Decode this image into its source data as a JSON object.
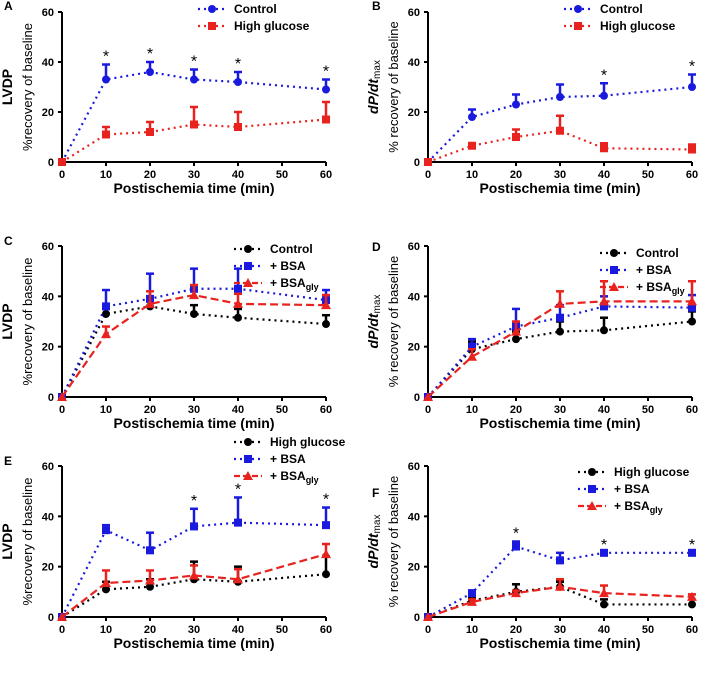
{
  "chart_data": [
    {
      "panel": "A",
      "type": "line",
      "ylabel_top": "LVDP",
      "ylabel": "%recovery of baseline",
      "xlabel": "Postischemia time (min)",
      "x": [
        0,
        10,
        20,
        30,
        40,
        60
      ],
      "xticks": [
        0,
        10,
        20,
        30,
        40,
        50,
        60
      ],
      "yticks": [
        0,
        20,
        40,
        60
      ],
      "ylim": [
        0,
        60
      ],
      "legend_position": "top-right",
      "series": [
        {
          "name": "Control",
          "color": "#1a1adf",
          "marker": "circle",
          "dash": "dot",
          "values": [
            0,
            33,
            36,
            33,
            32,
            29
          ],
          "errors": [
            0,
            6,
            4,
            4,
            4,
            4
          ]
        },
        {
          "name": "High glucose",
          "color": "#e8231f",
          "marker": "square",
          "dash": "dot",
          "values": [
            0,
            11,
            12,
            15,
            14,
            17
          ],
          "errors": [
            0,
            3,
            4,
            7,
            6,
            7
          ]
        }
      ],
      "stars_at": [
        10,
        20,
        30,
        40,
        60
      ],
      "star_symbol": "*"
    },
    {
      "panel": "B",
      "type": "line",
      "ylabel_top": "dP/dt",
      "ylabel_sub": "max",
      "ylabel": "% recovery of baseline",
      "xlabel": "Postischemia time (min)",
      "x": [
        0,
        10,
        20,
        30,
        40,
        60
      ],
      "xticks": [
        0,
        10,
        20,
        30,
        40,
        50,
        60
      ],
      "yticks": [
        0,
        20,
        40,
        60
      ],
      "ylim": [
        0,
        60
      ],
      "legend_position": "top-right",
      "series": [
        {
          "name": "Control",
          "color": "#1a1adf",
          "marker": "circle",
          "dash": "dot",
          "values": [
            0,
            18,
            23,
            26,
            26.5,
            30
          ],
          "errors": [
            0,
            3,
            4,
            5,
            5,
            5
          ]
        },
        {
          "name": "High glucose",
          "color": "#e8231f",
          "marker": "square",
          "dash": "dot",
          "values": [
            0,
            6.5,
            10,
            12.5,
            5.5,
            5
          ],
          "errors": [
            0,
            1,
            3,
            6,
            2,
            2
          ]
        }
      ],
      "stars_at": [
        40,
        60
      ],
      "star_symbol": "*"
    },
    {
      "panel": "C",
      "type": "line",
      "ylabel_top": "LVDP",
      "ylabel": "%recovery of baseline",
      "xlabel": "Postischemia time (min)",
      "x": [
        0,
        10,
        20,
        30,
        40,
        60
      ],
      "xticks": [
        0,
        10,
        20,
        30,
        40,
        50,
        60
      ],
      "yticks": [
        0,
        20,
        40,
        60
      ],
      "ylim": [
        0,
        60
      ],
      "legend_position": "top-right",
      "series": [
        {
          "name": "Control",
          "color": "#000000",
          "marker": "circle",
          "dash": "dot",
          "values": [
            0,
            33,
            36,
            33,
            31.5,
            29
          ],
          "errors": [
            0,
            3,
            3,
            3.5,
            3.5,
            3.5
          ]
        },
        {
          "name": "+ BSA",
          "color": "#1a1adf",
          "marker": "square",
          "dash": "dot",
          "values": [
            0,
            36,
            39,
            43,
            43,
            38.5
          ],
          "errors": [
            0,
            6.5,
            10,
            8,
            8,
            4
          ]
        },
        {
          "name": "+ BSA",
          "sub": "gly",
          "color": "#e8231f",
          "marker": "triangle",
          "dash": "dash",
          "values": [
            0,
            25,
            37,
            40.5,
            37,
            36.5
          ],
          "errors": [
            0,
            3,
            5,
            4,
            4,
            4
          ]
        }
      ],
      "stars_at": [],
      "star_symbol": "*"
    },
    {
      "panel": "D",
      "type": "line",
      "ylabel_top": "dP/dt",
      "ylabel_sub": "max",
      "ylabel": "% recovery of baseline",
      "xlabel": "Postischemia time (min)",
      "x": [
        0,
        10,
        20,
        30,
        40,
        60
      ],
      "xticks": [
        0,
        10,
        20,
        30,
        40,
        50,
        60
      ],
      "yticks": [
        0,
        20,
        40,
        60
      ],
      "ylim": [
        0,
        60
      ],
      "legend_position": "top-right",
      "series": [
        {
          "name": "Control",
          "color": "#000000",
          "marker": "circle",
          "dash": "dot",
          "values": [
            0,
            19,
            23,
            26,
            26.5,
            30
          ],
          "errors": [
            0,
            3,
            3,
            4,
            5,
            4
          ]
        },
        {
          "name": "+ BSA",
          "color": "#1a1adf",
          "marker": "square",
          "dash": "dot",
          "values": [
            0,
            20,
            28,
            31.5,
            36,
            35.5
          ],
          "errors": [
            0,
            3,
            7,
            5,
            4,
            5
          ]
        },
        {
          "name": "+ BSA",
          "sub": "gly",
          "color": "#e8231f",
          "marker": "triangle",
          "dash": "dash",
          "values": [
            0,
            16,
            26,
            37,
            38,
            38
          ],
          "errors": [
            0,
            3,
            4,
            5,
            8,
            8
          ]
        }
      ],
      "stars_at": [],
      "star_symbol": "*"
    },
    {
      "panel": "E",
      "type": "line",
      "ylabel_top": "LVDP",
      "ylabel": "%recovery of baseline",
      "xlabel": "Postischemia time (min)",
      "x": [
        0,
        10,
        20,
        30,
        40,
        60
      ],
      "xticks": [
        0,
        10,
        20,
        30,
        40,
        50,
        60
      ],
      "yticks": [
        0,
        20,
        40,
        60
      ],
      "ylim": [
        0,
        60
      ],
      "legend_position": "top-right",
      "series": [
        {
          "name": "High glucose",
          "color": "#000000",
          "marker": "circle",
          "dash": "dot",
          "values": [
            0,
            11,
            12,
            15,
            14,
            17
          ],
          "errors": [
            0,
            3,
            3,
            7,
            6,
            7
          ]
        },
        {
          "name": "+ BSA",
          "color": "#1a1adf",
          "marker": "square",
          "dash": "dot",
          "values": [
            0,
            34.5,
            26.5,
            36,
            37.5,
            36.5
          ],
          "errors": [
            0,
            2,
            7,
            7,
            10,
            7
          ]
        },
        {
          "name": "+ BSA",
          "sub": "gly",
          "color": "#e8231f",
          "marker": "triangle",
          "dash": "dash",
          "values": [
            0,
            13.5,
            14.5,
            16.5,
            15,
            25
          ],
          "errors": [
            0,
            5,
            4,
            4,
            4,
            4
          ]
        }
      ],
      "stars_at": [
        30,
        40,
        60
      ],
      "star_symbol": "*"
    },
    {
      "panel": "F",
      "type": "line",
      "ylabel_top": "dP/dt",
      "ylabel_sub": "max",
      "ylabel": "% recovery of baseline",
      "xlabel": "Postischemia time (min)",
      "x": [
        0,
        10,
        20,
        30,
        40,
        60
      ],
      "xticks": [
        0,
        10,
        20,
        30,
        40,
        50,
        60
      ],
      "yticks": [
        0,
        20,
        40,
        60
      ],
      "ylim": [
        0,
        60
      ],
      "legend_position": "top-right",
      "series": [
        {
          "name": "High glucose",
          "color": "#000000",
          "marker": "circle",
          "dash": "dot",
          "values": [
            0,
            6.5,
            10,
            12,
            5,
            5
          ],
          "errors": [
            0,
            1,
            3,
            2,
            2,
            0
          ]
        },
        {
          "name": "+ BSA",
          "color": "#1a1adf",
          "marker": "square",
          "dash": "dot",
          "values": [
            0,
            9.5,
            28,
            22.5,
            25.5,
            25.5
          ],
          "errors": [
            0,
            0,
            2,
            3,
            0,
            0
          ]
        },
        {
          "name": "+ BSA",
          "sub": "gly",
          "color": "#e8231f",
          "marker": "triangle",
          "dash": "dash",
          "values": [
            0,
            6,
            9.5,
            12,
            9.5,
            8
          ],
          "errors": [
            0,
            1,
            1,
            3,
            3,
            1
          ]
        }
      ],
      "stars_at": [
        20,
        40,
        60
      ],
      "star_symbol": "*"
    }
  ]
}
